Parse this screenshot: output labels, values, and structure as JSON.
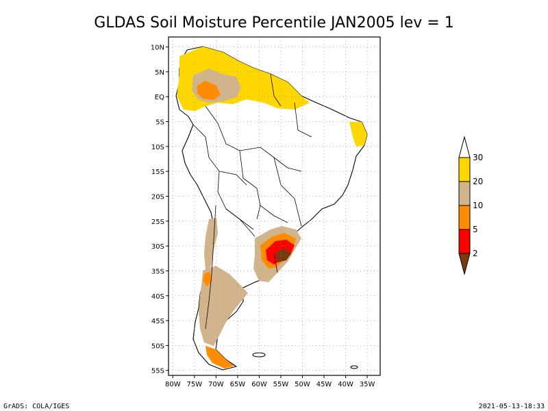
{
  "title": "GLDAS Soil Moisture Percentile JAN2005 lev = 1",
  "footer_left": "GrADS: COLA/IGES",
  "footer_right": "2021-05-13-18:33",
  "map": {
    "lon_range": [
      -81,
      -32
    ],
    "lat_range": [
      -56,
      12
    ],
    "lat_ticks": [
      {
        "value": 10,
        "label": "10N"
      },
      {
        "value": 5,
        "label": "5N"
      },
      {
        "value": 0,
        "label": "EQ"
      },
      {
        "value": -5,
        "label": "5S"
      },
      {
        "value": -10,
        "label": "10S"
      },
      {
        "value": -15,
        "label": "15S"
      },
      {
        "value": -20,
        "label": "20S"
      },
      {
        "value": -25,
        "label": "25S"
      },
      {
        "value": -30,
        "label": "30S"
      },
      {
        "value": -35,
        "label": "35S"
      },
      {
        "value": -40,
        "label": "40S"
      },
      {
        "value": -45,
        "label": "45S"
      },
      {
        "value": -50,
        "label": "50S"
      },
      {
        "value": -55,
        "label": "55S"
      }
    ],
    "lon_ticks": [
      {
        "value": -80,
        "label": "80W"
      },
      {
        "value": -75,
        "label": "75W"
      },
      {
        "value": -70,
        "label": "70W"
      },
      {
        "value": -65,
        "label": "65W"
      },
      {
        "value": -60,
        "label": "60W"
      },
      {
        "value": -55,
        "label": "55W"
      },
      {
        "value": -50,
        "label": "50W"
      },
      {
        "value": -45,
        "label": "45W"
      },
      {
        "value": -40,
        "label": "40W"
      },
      {
        "value": -35,
        "label": "35W"
      }
    ]
  },
  "legend": {
    "bins": [
      {
        "color": "#7a3a10",
        "label": "2"
      },
      {
        "color": "#ff0000",
        "label": "5"
      },
      {
        "color": "#ff8c00",
        "label": "10"
      },
      {
        "color": "#d2b48c",
        "label": "20"
      },
      {
        "color": "#ffd700",
        "label": "30"
      },
      {
        "color": "#ffffff",
        "label": ""
      }
    ]
  },
  "colors": {
    "dry_2": "#7a3a10",
    "dry_5": "#ff0000",
    "dry_10": "#ff8c00",
    "dry_20": "#d2b48c",
    "dry_30": "#ffd700"
  }
}
